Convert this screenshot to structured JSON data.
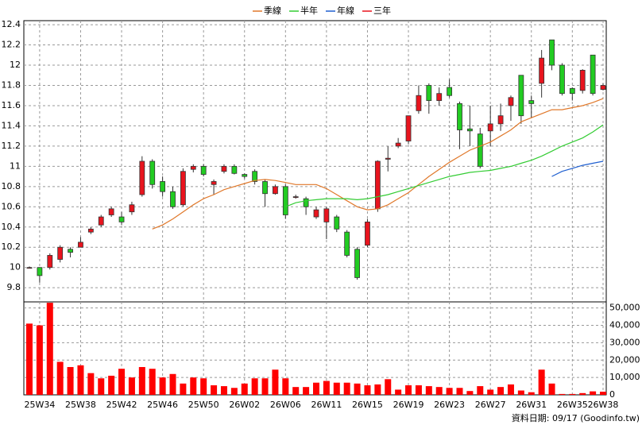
{
  "chart_data": {
    "type": "candlestick",
    "legend": [
      "季線",
      "半年",
      "年線",
      "三年"
    ],
    "categories": [
      null,
      "25W34",
      null,
      null,
      null,
      "25W38",
      null,
      null,
      null,
      "25W42",
      null,
      null,
      null,
      "25W46",
      null,
      null,
      null,
      "25W50",
      null,
      null,
      null,
      "26W02",
      null,
      null,
      null,
      "26W06",
      null,
      null,
      null,
      "26W11",
      null,
      null,
      null,
      "26W15",
      null,
      null,
      null,
      "26W19",
      null,
      null,
      null,
      "26W23",
      null,
      null,
      null,
      "26W27",
      null,
      null,
      null,
      "26W31",
      null,
      null,
      null,
      "26W35",
      null,
      null,
      "26W38"
    ],
    "open": [
      10.0,
      10.0,
      10.0,
      10.08,
      10.18,
      10.2,
      10.35,
      10.42,
      10.52,
      10.5,
      10.55,
      10.72,
      11.05,
      10.85,
      10.75,
      10.62,
      10.97,
      11.0,
      10.82,
      10.95,
      11.0,
      10.92,
      10.95,
      10.85,
      10.73,
      10.8,
      10.7,
      10.68,
      10.5,
      10.45,
      10.5,
      10.35,
      10.18,
      10.22,
      10.58,
      11.07,
      11.2,
      11.25,
      11.55,
      11.8,
      11.65,
      11.78,
      11.62,
      11.37,
      11.32,
      11.35,
      11.42,
      11.6,
      11.9,
      11.65,
      11.82,
      12.25,
      12.0,
      11.77,
      11.75,
      12.1,
      11.76
    ],
    "high": [
      10.01,
      10.0,
      10.14,
      10.22,
      10.2,
      10.3,
      10.4,
      10.52,
      10.6,
      10.55,
      10.65,
      11.1,
      11.07,
      10.9,
      10.8,
      10.98,
      11.02,
      11.02,
      10.87,
      11.02,
      11.02,
      10.93,
      10.97,
      10.87,
      10.82,
      10.82,
      10.72,
      10.7,
      10.6,
      10.6,
      10.52,
      10.37,
      10.2,
      10.48,
      11.06,
      11.2,
      11.28,
      11.5,
      11.8,
      11.82,
      11.78,
      11.86,
      11.64,
      11.6,
      11.38,
      11.6,
      11.62,
      11.7,
      11.9,
      11.7,
      12.15,
      12.25,
      12.02,
      11.78,
      11.96,
      12.1,
      11.82
    ],
    "low": [
      9.99,
      9.85,
      9.98,
      10.05,
      10.1,
      10.2,
      10.33,
      10.4,
      10.5,
      10.42,
      10.52,
      10.7,
      10.78,
      10.7,
      10.58,
      10.6,
      10.94,
      10.9,
      10.72,
      10.93,
      10.92,
      10.88,
      10.82,
      10.6,
      10.72,
      10.48,
      10.68,
      10.52,
      10.48,
      10.28,
      10.35,
      10.1,
      9.88,
      10.2,
      10.55,
      10.95,
      11.18,
      11.22,
      11.52,
      11.52,
      11.6,
      11.68,
      11.17,
      11.2,
      10.98,
      11.2,
      11.35,
      11.45,
      11.42,
      11.48,
      11.68,
      11.95,
      11.7,
      11.65,
      11.72,
      11.7,
      11.75
    ],
    "close": [
      10.0,
      9.92,
      10.12,
      10.2,
      10.15,
      10.25,
      10.38,
      10.5,
      10.58,
      10.45,
      10.62,
      11.05,
      10.82,
      10.75,
      10.6,
      10.95,
      11.0,
      10.92,
      10.85,
      11.0,
      10.93,
      10.9,
      10.85,
      10.73,
      10.8,
      10.52,
      10.7,
      10.6,
      10.57,
      10.58,
      10.38,
      10.12,
      9.9,
      10.45,
      11.05,
      11.08,
      11.23,
      11.5,
      11.7,
      11.65,
      11.72,
      11.7,
      11.36,
      11.35,
      11.0,
      11.42,
      11.5,
      11.68,
      11.5,
      11.62,
      12.07,
      12.0,
      11.72,
      11.72,
      11.95,
      11.72,
      11.8
    ],
    "up_color": "#e8141e",
    "down_color": "#22cc22",
    "series": [
      {
        "name": "季線",
        "color": "#e0782a",
        "values": [
          null,
          null,
          null,
          null,
          null,
          null,
          null,
          null,
          null,
          null,
          null,
          null,
          10.38,
          10.42,
          10.48,
          10.55,
          10.62,
          10.68,
          10.72,
          10.77,
          10.8,
          10.83,
          10.86,
          10.87,
          10.86,
          10.84,
          10.82,
          10.82,
          10.82,
          10.78,
          10.72,
          10.66,
          10.6,
          10.57,
          10.58,
          10.62,
          10.68,
          10.74,
          10.82,
          10.9,
          10.97,
          11.04,
          11.1,
          11.16,
          11.2,
          11.24,
          11.3,
          11.36,
          11.44,
          11.48,
          11.52,
          11.56,
          11.56,
          11.58,
          11.6,
          11.63,
          11.67
        ]
      },
      {
        "name": "半年",
        "color": "#33cc33",
        "values": [
          null,
          null,
          null,
          null,
          null,
          null,
          null,
          null,
          null,
          null,
          null,
          null,
          null,
          null,
          null,
          null,
          null,
          null,
          null,
          null,
          null,
          null,
          null,
          null,
          null,
          10.6,
          10.64,
          10.66,
          10.67,
          10.68,
          10.68,
          10.68,
          10.67,
          10.68,
          10.7,
          10.72,
          10.75,
          10.78,
          10.81,
          10.84,
          10.87,
          10.9,
          10.92,
          10.94,
          10.95,
          10.96,
          10.98,
          11.0,
          11.03,
          11.06,
          11.1,
          11.15,
          11.2,
          11.24,
          11.28,
          11.34,
          11.41
        ]
      },
      {
        "name": "年線",
        "color": "#1f5fd0",
        "values": [
          null,
          null,
          null,
          null,
          null,
          null,
          null,
          null,
          null,
          null,
          null,
          null,
          null,
          null,
          null,
          null,
          null,
          null,
          null,
          null,
          null,
          null,
          null,
          null,
          null,
          null,
          null,
          null,
          null,
          null,
          null,
          null,
          null,
          null,
          null,
          null,
          null,
          null,
          null,
          null,
          null,
          null,
          null,
          null,
          null,
          null,
          null,
          null,
          null,
          null,
          null,
          10.9,
          10.95,
          10.98,
          11.01,
          11.03,
          11.05
        ]
      },
      {
        "name": "三年",
        "color": "#e8141e",
        "values": [
          null,
          null,
          null,
          null,
          null,
          null,
          null,
          null,
          null,
          null,
          null,
          null,
          null,
          null,
          null,
          null,
          null,
          null,
          null,
          null,
          null,
          null,
          null,
          null,
          null,
          null,
          null,
          null,
          null,
          null,
          null,
          null,
          null,
          null,
          null,
          null,
          null,
          null,
          null,
          null,
          null,
          null,
          null,
          null,
          null,
          null,
          null,
          null,
          null,
          null,
          null,
          null,
          null,
          null,
          null,
          null,
          null
        ]
      }
    ],
    "ylim": [
      9.66,
      12.44
    ],
    "yticks": [
      9.8,
      10,
      10.2,
      10.4,
      10.6,
      10.8,
      11,
      11.2,
      11.4,
      11.6,
      11.8,
      12,
      12.2,
      12.4
    ],
    "grid": true,
    "volume": {
      "color": "#ff0000",
      "values": [
        41000,
        40000,
        53000,
        19000,
        16000,
        17000,
        12500,
        9500,
        11000,
        15000,
        10000,
        16000,
        15000,
        10000,
        12000,
        6500,
        10000,
        9500,
        5500,
        5000,
        4000,
        6500,
        9500,
        9500,
        14500,
        9500,
        4500,
        4500,
        7000,
        8000,
        7000,
        7000,
        6500,
        5500,
        6000,
        9000,
        3000,
        5500,
        5500,
        5000,
        4500,
        4000,
        4000,
        2200,
        5000,
        3000,
        4500,
        6000,
        2500,
        1500,
        14500,
        6500,
        500,
        500,
        1000,
        2000,
        1800
      ],
      "ylim": [
        0,
        53500
      ],
      "yticks": [
        0,
        {
          "value": 10000,
          "label": "10,000"
        },
        {
          "value": 20000,
          "label": "20,000"
        },
        {
          "value": 30000,
          "label": "30,000"
        },
        {
          "value": 40000,
          "label": "40,000"
        },
        {
          "value": 50000,
          "label": "50,000"
        }
      ]
    },
    "footnote": "資料日期: 09/17  (Goodinfo.tw)"
  }
}
